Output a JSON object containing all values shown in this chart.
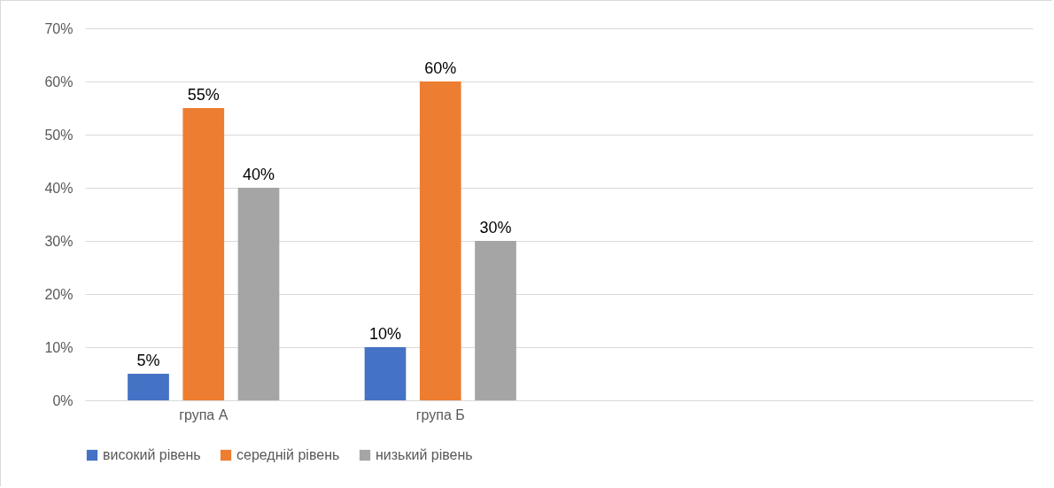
{
  "chart_data": {
    "type": "bar",
    "categories": [
      "група А",
      "група Б",
      null,
      null
    ],
    "series": [
      {
        "name": "високий рівень",
        "color": "#4472c4",
        "values": [
          5,
          10,
          null,
          null
        ],
        "value_labels": [
          "5%",
          "10%",
          null,
          null
        ]
      },
      {
        "name": "середній рівень",
        "color": "#ed7d31",
        "values": [
          55,
          60,
          null,
          null
        ],
        "value_labels": [
          "55%",
          "60%",
          null,
          null
        ]
      },
      {
        "name": "низький рівень",
        "color": "#a5a5a5",
        "values": [
          40,
          30,
          null,
          null
        ],
        "value_labels": [
          "40%",
          "30%",
          null,
          null
        ]
      }
    ],
    "ylim": [
      0,
      70
    ],
    "yticks": [
      {
        "value": 0,
        "label": "0%"
      },
      {
        "value": 10,
        "label": "10%"
      },
      {
        "value": 20,
        "label": "20%"
      },
      {
        "value": 30,
        "label": "30%"
      },
      {
        "value": 40,
        "label": "40%"
      },
      {
        "value": 50,
        "label": "50%"
      },
      {
        "value": 60,
        "label": "60%"
      },
      {
        "value": 70,
        "label": "70%"
      }
    ],
    "grid": "y",
    "legend": "bottom"
  }
}
